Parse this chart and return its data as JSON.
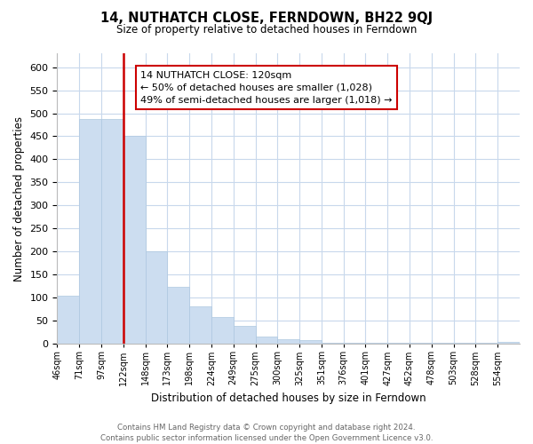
{
  "title": "14, NUTHATCH CLOSE, FERNDOWN, BH22 9QJ",
  "subtitle": "Size of property relative to detached houses in Ferndown",
  "xlabel": "Distribution of detached houses by size in Ferndown",
  "ylabel": "Number of detached properties",
  "bar_color": "#ccddf0",
  "bar_edge_color": "#aec8e0",
  "vline_color": "#cc0000",
  "annotation_text": "14 NUTHATCH CLOSE: 120sqm\n← 50% of detached houses are smaller (1,028)\n49% of semi-detached houses are larger (1,018) →",
  "annotation_fontsize": 8.0,
  "tick_labels": [
    "46sqm",
    "71sqm",
    "97sqm",
    "122sqm",
    "148sqm",
    "173sqm",
    "198sqm",
    "224sqm",
    "249sqm",
    "275sqm",
    "300sqm",
    "325sqm",
    "351sqm",
    "376sqm",
    "401sqm",
    "427sqm",
    "452sqm",
    "478sqm",
    "503sqm",
    "528sqm",
    "554sqm"
  ],
  "bar_heights": [
    105,
    487,
    487,
    450,
    200,
    123,
    82,
    59,
    38,
    15,
    10,
    9,
    2,
    2,
    2,
    2,
    2,
    2,
    2,
    2,
    5
  ],
  "ylim": [
    0,
    630
  ],
  "yticks": [
    0,
    50,
    100,
    150,
    200,
    250,
    300,
    350,
    400,
    450,
    500,
    550,
    600
  ],
  "footer_text": "Contains HM Land Registry data © Crown copyright and database right 2024.\nContains public sector information licensed under the Open Government Licence v3.0.",
  "background_color": "#ffffff",
  "grid_color": "#c8d8ec"
}
